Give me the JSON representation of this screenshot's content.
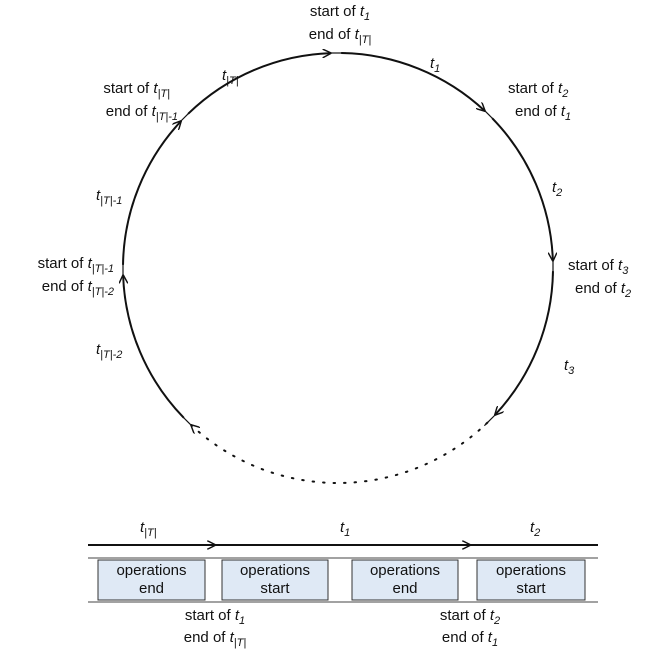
{
  "circle": {
    "boundaries": [
      {
        "lines": [
          {
            "text": "start of ",
            "var": "t",
            "sub": "1"
          },
          {
            "text": "end of ",
            "var": "t",
            "sub": "|T|"
          }
        ]
      },
      {
        "lines": [
          {
            "text": "start of ",
            "var": "t",
            "sub": "2"
          },
          {
            "text": "end of ",
            "var": "t",
            "sub": "1"
          }
        ]
      },
      {
        "lines": [
          {
            "text": "start of ",
            "var": "t",
            "sub": "3"
          },
          {
            "text": "end of ",
            "var": "t",
            "sub": "2"
          }
        ]
      },
      {
        "lines": [
          {
            "text": "start of ",
            "var": "t",
            "sub": "|T|"
          },
          {
            "text": "end of ",
            "var": "t",
            "sub": "|T|-1"
          }
        ]
      },
      {
        "lines": [
          {
            "text": "start of ",
            "var": "t",
            "sub": "|T|-1"
          },
          {
            "text": "end of ",
            "var": "t",
            "sub": "|T|-2"
          }
        ]
      }
    ],
    "segments": [
      {
        "var": "t",
        "sub": "|T|"
      },
      {
        "var": "t",
        "sub": "1"
      },
      {
        "var": "t",
        "sub": "2"
      },
      {
        "var": "t",
        "sub": "3"
      },
      {
        "var": "t",
        "sub": "|T|-1"
      },
      {
        "var": "t",
        "sub": "|T|-2"
      }
    ]
  },
  "timeline": {
    "segments": [
      {
        "var": "t",
        "sub": "|T|"
      },
      {
        "var": "t",
        "sub": "1"
      },
      {
        "var": "t",
        "sub": "2"
      }
    ],
    "boxes": [
      [
        "operations",
        "end"
      ],
      [
        "operations",
        "start"
      ],
      [
        "operations",
        "end"
      ],
      [
        "operations",
        "start"
      ]
    ],
    "boundaries": [
      {
        "lines": [
          {
            "text": "start of ",
            "var": "t",
            "sub": "1"
          },
          {
            "text": "end of ",
            "var": "t",
            "sub": "|T|"
          }
        ]
      },
      {
        "lines": [
          {
            "text": "start of ",
            "var": "t",
            "sub": "2"
          },
          {
            "text": "end of ",
            "var": "t",
            "sub": "1"
          }
        ]
      }
    ]
  }
}
